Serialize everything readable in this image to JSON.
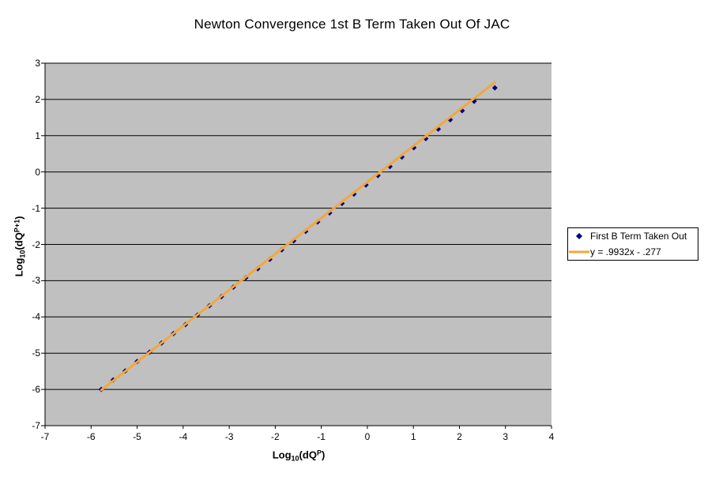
{
  "chart_title": "Newton Convergence 1st B Term Taken Out Of JAC",
  "chart_data": {
    "type": "scatter",
    "title": "Newton Convergence 1st B Term Taken Out Of JAC",
    "xlabel": "Log10(dQ^P)",
    "ylabel": "Log10(dQ^(P+1))",
    "xlabel_parts": {
      "base": "Log",
      "sub": "10",
      "mid": "(dQ",
      "sup": "P",
      "close": ")"
    },
    "ylabel_parts": {
      "base": "Log",
      "sub": "10",
      "mid": "(dQ",
      "sup": "P+1",
      "close": ")"
    },
    "xlim": [
      -7,
      4
    ],
    "ylim": [
      -7,
      3
    ],
    "x_ticks": [
      -7,
      -6,
      -5,
      -4,
      -3,
      -2,
      -1,
      0,
      1,
      2,
      3,
      4
    ],
    "y_ticks": [
      3,
      2,
      1,
      0,
      -1,
      -2,
      -3,
      -4,
      -5,
      -6,
      -7
    ],
    "grid": "horizontal-only",
    "legend_position": "right",
    "colors": {
      "plot_bg": "#C0C0C0",
      "gridline": "#000000",
      "axis": "#000000",
      "marker": "#000080",
      "trendline": "#F2A73B",
      "legend_border": "#000000"
    },
    "series": [
      {
        "name": "First B Term Taken Out",
        "kind": "scatter",
        "marker": "diamond",
        "color": "#000080",
        "points": [
          [
            -5.78,
            -6.0
          ],
          [
            -5.52,
            -5.74
          ],
          [
            -5.26,
            -5.49
          ],
          [
            -5.0,
            -5.23
          ],
          [
            -4.73,
            -4.97
          ],
          [
            -4.47,
            -4.72
          ],
          [
            -4.21,
            -4.46
          ],
          [
            -3.95,
            -4.21
          ],
          [
            -3.69,
            -3.95
          ],
          [
            -3.43,
            -3.69
          ],
          [
            -3.17,
            -3.44
          ],
          [
            -2.91,
            -3.18
          ],
          [
            -2.64,
            -2.92
          ],
          [
            -2.38,
            -2.67
          ],
          [
            -2.12,
            -2.41
          ],
          [
            -1.86,
            -2.15
          ],
          [
            -1.6,
            -1.9
          ],
          [
            -1.34,
            -1.64
          ],
          [
            -1.08,
            -1.38
          ],
          [
            -0.82,
            -1.13
          ],
          [
            -0.55,
            -0.87
          ],
          [
            -0.29,
            -0.61
          ],
          [
            -0.03,
            -0.36
          ],
          [
            0.23,
            -0.1
          ],
          [
            0.49,
            0.15
          ],
          [
            0.75,
            0.41
          ],
          [
            1.01,
            0.67
          ],
          [
            1.27,
            0.92
          ],
          [
            1.54,
            1.18
          ],
          [
            1.8,
            1.44
          ],
          [
            2.06,
            1.69
          ],
          [
            2.32,
            1.95
          ],
          [
            2.77,
            2.32
          ]
        ]
      },
      {
        "name": "y = .9932x - .277",
        "kind": "trendline",
        "color": "#F2A73B",
        "slope": 0.9932,
        "intercept": -0.277,
        "x_range": [
          -5.78,
          2.77
        ]
      }
    ]
  }
}
